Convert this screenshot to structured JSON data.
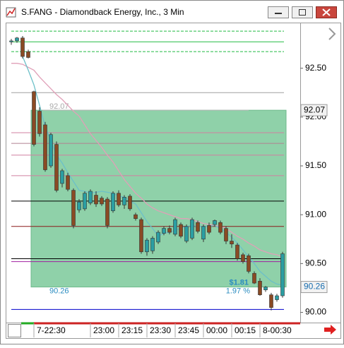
{
  "window_title": "S.FANG - Diamondback Energy, Inc., 3 Min",
  "chart_data": {
    "type": "candlestick",
    "categories": [
      null,
      null,
      null,
      null,
      "7-22:30",
      null,
      null,
      null,
      null,
      null,
      null,
      null,
      null,
      null,
      "23:00",
      null,
      null,
      null,
      null,
      "23:15",
      null,
      null,
      null,
      null,
      "23:30",
      null,
      null,
      null,
      null,
      "23:45",
      null,
      null,
      null,
      null,
      "00:00",
      null,
      null,
      null,
      null,
      "00:15",
      null,
      null,
      null,
      null,
      "8-00:30",
      null,
      null,
      null,
      null
    ],
    "open": [
      92.77,
      92.78,
      92.81,
      92.67,
      92.26,
      92.06,
      91.92,
      91.5,
      91.72,
      91.32,
      91.4,
      91.25,
      91.05,
      91.06,
      91.12,
      91.2,
      91.17,
      91.16,
      91.04,
      91.22,
      91.1,
      91.19,
      91.0,
      90.95,
      90.62,
      90.63,
      90.72,
      90.81,
      90.86,
      90.8,
      90.9,
      90.73,
      90.76,
      90.92,
      90.75,
      90.89,
      90.9,
      90.92,
      90.86,
      90.73,
      90.69,
      90.59,
      90.58,
      90.4,
      90.32,
      90.23,
      90.18,
      90.13,
      90.17
    ],
    "high": [
      92.8,
      92.82,
      92.83,
      92.69,
      92.27,
      92.1,
      91.95,
      91.84,
      91.75,
      91.47,
      91.43,
      91.27,
      91.16,
      91.24,
      91.26,
      91.24,
      91.19,
      91.18,
      91.24,
      91.25,
      91.2,
      91.21,
      91.02,
      90.97,
      90.76,
      90.78,
      90.84,
      90.88,
      90.89,
      90.97,
      90.92,
      90.9,
      90.97,
      90.94,
      90.9,
      90.92,
      90.95,
      90.94,
      90.88,
      90.8,
      90.71,
      90.61,
      90.6,
      90.42,
      90.35,
      90.27,
      90.2,
      90.19,
      90.62
    ],
    "low": [
      92.74,
      92.76,
      92.6,
      92.6,
      91.7,
      91.8,
      91.44,
      91.48,
      91.23,
      91.28,
      91.24,
      90.86,
      91.02,
      91.04,
      91.1,
      91.08,
      91.09,
      90.86,
      91.02,
      91.08,
      91.06,
      91.04,
      90.94,
      90.6,
      90.58,
      90.6,
      90.7,
      90.79,
      90.8,
      90.78,
      90.76,
      90.71,
      90.74,
      90.81,
      90.72,
      90.8,
      90.88,
      90.8,
      90.7,
      90.66,
      90.53,
      90.5,
      90.4,
      90.29,
      90.17,
      90.21,
      90.02,
      90.11,
      90.15
    ],
    "close": [
      92.78,
      92.81,
      92.62,
      92.61,
      91.72,
      91.83,
      91.46,
      91.82,
      91.25,
      91.45,
      91.26,
      90.89,
      91.13,
      91.22,
      91.24,
      91.11,
      91.11,
      90.89,
      91.22,
      91.1,
      91.18,
      91.06,
      90.96,
      90.62,
      90.74,
      90.76,
      90.82,
      90.86,
      90.82,
      90.95,
      90.78,
      90.88,
      90.95,
      90.83,
      90.88,
      90.82,
      90.94,
      90.82,
      90.73,
      90.7,
      90.55,
      90.52,
      90.42,
      90.3,
      90.18,
      90.26,
      90.05,
      90.17,
      90.6
    ],
    "up_color": "#2b9ea3",
    "down_color": "#8a4a24",
    "moving_averages": [
      {
        "color": "#e0a0b8",
        "values": [
          92.55,
          92.55,
          92.54,
          92.51,
          92.48,
          92.41,
          92.35,
          92.29,
          92.23,
          92.18,
          92.12,
          92.06,
          92.01,
          91.92,
          91.83,
          91.76,
          91.69,
          91.61,
          91.54,
          91.45,
          91.36,
          91.29,
          91.22,
          91.17,
          91.11,
          91.07,
          91.04,
          91.02,
          91.0,
          90.98,
          90.96,
          90.96,
          90.95,
          90.93,
          90.91,
          90.9,
          90.89,
          90.88,
          90.86,
          90.82,
          90.78,
          90.75,
          90.71,
          90.68,
          90.64,
          90.62,
          90.6,
          90.59,
          90.57
        ]
      },
      {
        "color": "#6cc0c8",
        "values": [
          null,
          null,
          92.62,
          92.48,
          92.33,
          92.12,
          91.9,
          91.76,
          91.61,
          91.53,
          91.43,
          91.34,
          91.25,
          91.24,
          91.22,
          91.23,
          91.24,
          91.23,
          91.22,
          91.19,
          91.18,
          91.14,
          91.11,
          91.02,
          90.93,
          90.86,
          90.78,
          90.81,
          90.82,
          90.84,
          90.86,
          90.88,
          90.89,
          90.88,
          90.88,
          90.88,
          90.89,
          90.86,
          90.82,
          90.77,
          90.71,
          90.64,
          90.57,
          90.5,
          90.42,
          90.37,
          90.32,
          90.29,
          90.28
        ]
      }
    ],
    "levels": [
      {
        "value": 92.88,
        "color": "#22bb44",
        "dashed": true
      },
      {
        "value": 92.77,
        "color": "#22bb44",
        "dashed": false
      },
      {
        "value": 92.67,
        "color": "#22bb44",
        "dashed": true
      },
      {
        "value": 92.25,
        "color": "#a0a0a0",
        "dashed": false
      },
      {
        "value": 91.84,
        "color": "#d080a0",
        "dashed": false
      },
      {
        "value": 91.73,
        "color": "#b08090",
        "dashed": false
      },
      {
        "value": 91.61,
        "color": "#d080a0",
        "dashed": false
      },
      {
        "value": 91.4,
        "color": "#d080a0",
        "dashed": false
      },
      {
        "value": 91.14,
        "color": "#000000",
        "dashed": false
      },
      {
        "value": 90.88,
        "color": "#8b1a1a",
        "dashed": false
      },
      {
        "value": 90.55,
        "color": "#000000",
        "dashed": false
      },
      {
        "value": 90.52,
        "color": "#a020a0",
        "dashed": false
      },
      {
        "value": 90.03,
        "color": "#0000cc",
        "dashed": false
      }
    ],
    "trade_box": {
      "entry": 92.07,
      "target": 90.26,
      "color": "#8fd1a9",
      "amount": {
        "value": 1.81,
        "label": "$1.81"
      },
      "percent": {
        "value": 1.97,
        "label": "1.97 %"
      }
    },
    "ylim": [
      89.91,
      92.96
    ],
    "yticks": [
      {
        "value": 90.0,
        "label": "90.00"
      },
      {
        "value": 90.5,
        "label": "90.50"
      },
      {
        "value": 91.0,
        "label": "91.00"
      },
      {
        "value": 91.5,
        "label": "91.50"
      },
      {
        "value": 92.0,
        "label": "92.00"
      },
      {
        "value": 92.5,
        "label": "92.50"
      }
    ]
  }
}
